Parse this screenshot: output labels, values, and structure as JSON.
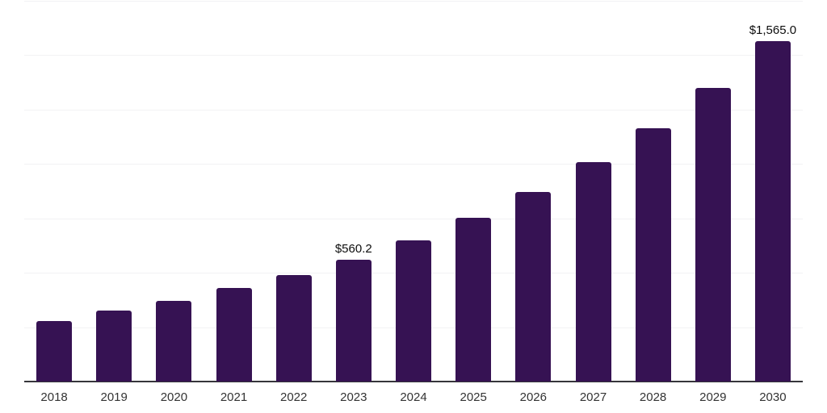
{
  "chart_data": {
    "type": "bar",
    "title": "",
    "xlabel": "",
    "ylabel": "",
    "categories": [
      "2018",
      "2019",
      "2020",
      "2021",
      "2022",
      "2023",
      "2024",
      "2025",
      "2026",
      "2027",
      "2028",
      "2029",
      "2030"
    ],
    "values": [
      280,
      325,
      372,
      429,
      491,
      560.2,
      649,
      752,
      870,
      1007,
      1164,
      1348,
      1565
    ],
    "data_labels": [
      "",
      "",
      "",
      "",
      "",
      "$560.2",
      "",
      "",
      "",
      "",
      "",
      "",
      "$1,565.0"
    ],
    "ylim": [
      0,
      1750
    ],
    "gridline_step": 250,
    "grid": "horizontal",
    "legend": "none",
    "bar_color": "#361253",
    "axis_color": "#36363a",
    "gridline_color": "#f2f2f4",
    "tick_color": "#333333",
    "label_color": "#0d0d0d",
    "background_color": "#ffffff"
  }
}
